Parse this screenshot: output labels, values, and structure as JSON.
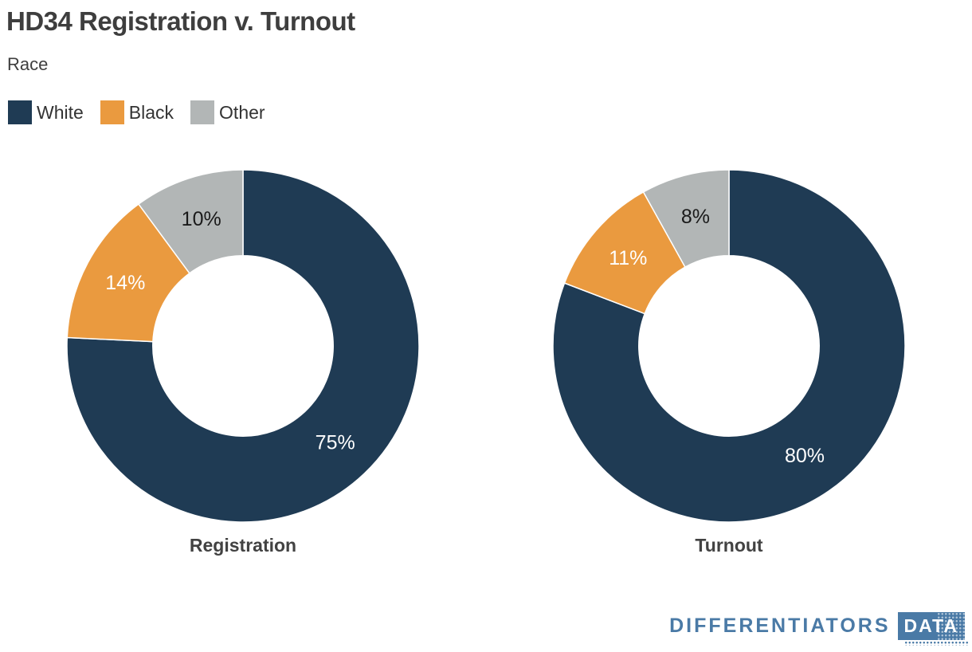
{
  "header": {
    "title": "HD34 Registration v. Turnout",
    "subtitle": "Race"
  },
  "legend": {
    "items": [
      {
        "label": "White",
        "color": "#1f3b54"
      },
      {
        "label": "Black",
        "color": "#ea9a3f"
      },
      {
        "label": "Other",
        "color": "#b2b6b6"
      }
    ],
    "position": "top-left"
  },
  "chart_data": [
    {
      "type": "pie",
      "subtype": "donut",
      "title": "Registration",
      "categories": [
        "White",
        "Black",
        "Other"
      ],
      "values": [
        75,
        14,
        10
      ],
      "data_labels": [
        "75%",
        "14%",
        "10%"
      ],
      "colors": [
        "#1f3b54",
        "#ea9a3f",
        "#b2b6b6"
      ],
      "label_colors": [
        "#ffffff",
        "#ffffff",
        "#1a1a1a"
      ],
      "inner_radius_ratio": 0.51,
      "start_angle_deg": 0,
      "direction": "clockwise"
    },
    {
      "type": "pie",
      "subtype": "donut",
      "title": "Turnout",
      "categories": [
        "White",
        "Black",
        "Other"
      ],
      "values": [
        80,
        11,
        8
      ],
      "data_labels": [
        "80%",
        "11%",
        "8%"
      ],
      "colors": [
        "#1f3b54",
        "#ea9a3f",
        "#b2b6b6"
      ],
      "label_colors": [
        "#ffffff",
        "#ffffff",
        "#1a1a1a"
      ],
      "inner_radius_ratio": 0.51,
      "start_angle_deg": 0,
      "direction": "clockwise"
    }
  ],
  "footer": {
    "brand": "DIFFERENTIATORS",
    "badge": "DATA",
    "brand_color": "#4a7aa6"
  }
}
